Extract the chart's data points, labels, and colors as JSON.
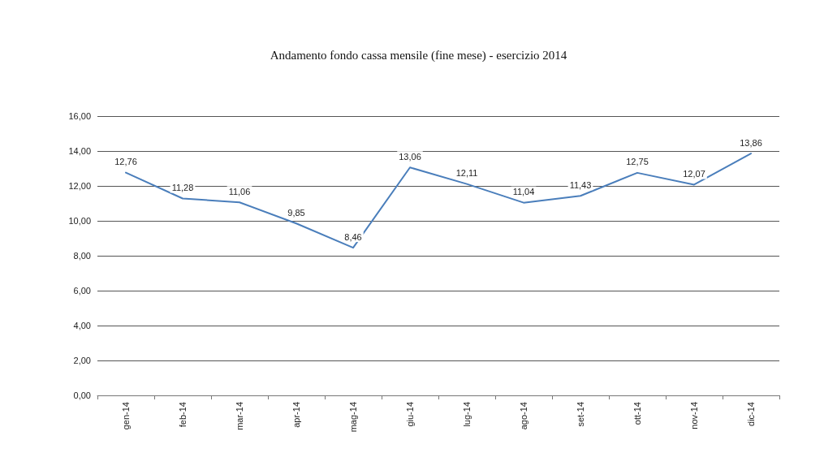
{
  "chart_data": {
    "type": "line",
    "title": "Andamento fondo cassa mensile (fine mese) - esercizio 2014",
    "categories": [
      "gen-14",
      "feb-14",
      "mar-14",
      "apr-14",
      "mag-14",
      "giu-14",
      "lug-14",
      "ago-14",
      "set-14",
      "ott-14",
      "nov-14",
      "dic-14"
    ],
    "series": [
      {
        "color": "#4a7ebb",
        "values": [
          12.76,
          11.28,
          11.06,
          9.85,
          8.46,
          13.06,
          12.11,
          11.04,
          11.43,
          12.75,
          12.07,
          13.86
        ],
        "value_labels": [
          "12,76",
          "11,28",
          "11,06",
          "9,85",
          "8,46",
          "13,06",
          "12,11",
          "11,04",
          "11,43",
          "12,75",
          "12,07",
          "13,86"
        ]
      }
    ],
    "ylim": [
      0,
      16
    ],
    "yticks": [
      {
        "value": 0,
        "label": "0,00"
      },
      {
        "value": 2,
        "label": "2,00"
      },
      {
        "value": 4,
        "label": "4,00"
      },
      {
        "value": 6,
        "label": "6,00"
      },
      {
        "value": 8,
        "label": "8,00"
      },
      {
        "value": 10,
        "label": "10,00"
      },
      {
        "value": 12,
        "label": "12,00"
      },
      {
        "value": 14,
        "label": "14,00"
      },
      {
        "value": 16,
        "label": "16,00"
      }
    ],
    "grid": "y",
    "marker": "none",
    "line_style": "solid"
  }
}
